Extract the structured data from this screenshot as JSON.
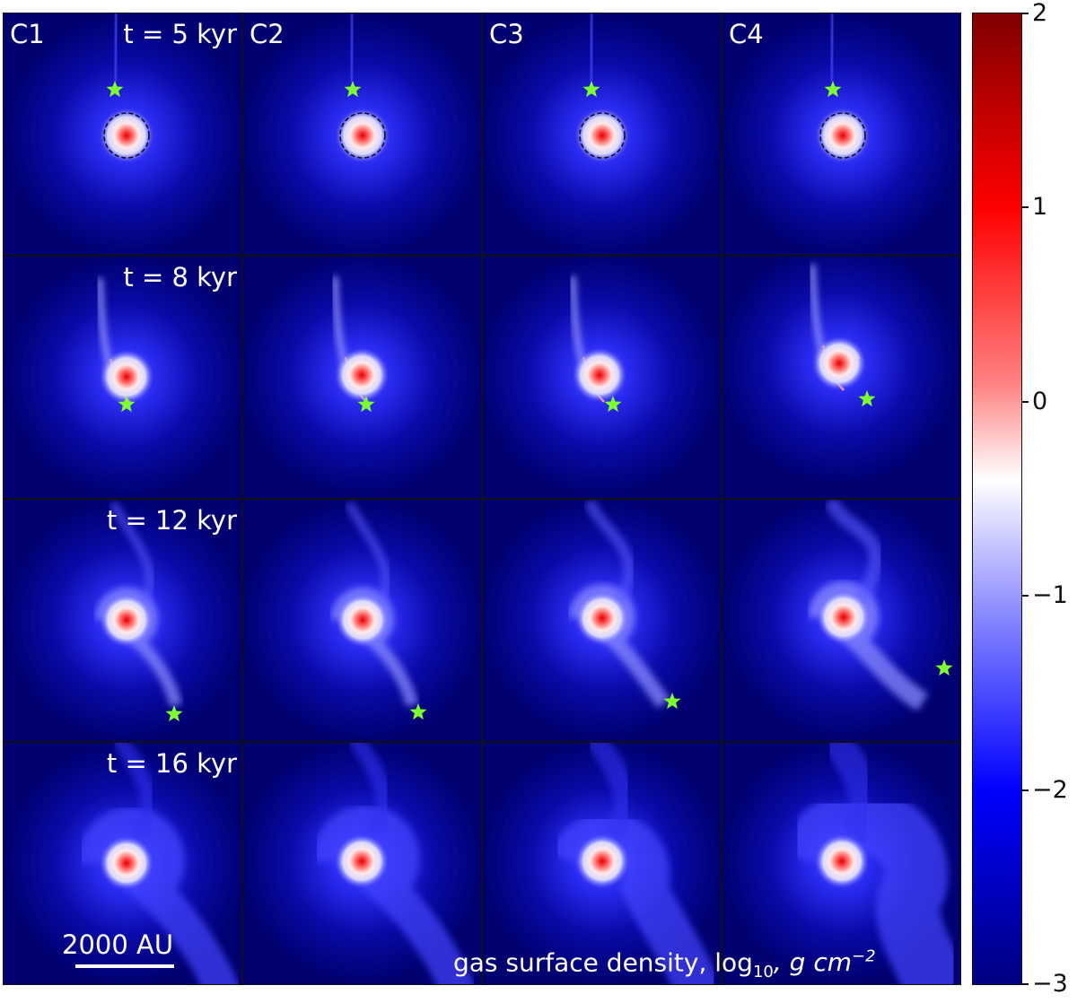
{
  "panels": {
    "columns": [
      "C1",
      "C2",
      "C3",
      "C4"
    ],
    "row_times": [
      "t = 5 kyr",
      "t = 8 kyr",
      "t = 12 kyr",
      "t = 16 kyr"
    ]
  },
  "scalebar": {
    "label": "2000 AU"
  },
  "density_label": {
    "prefix": "gas surface density, log",
    "sub": "10",
    "unit": ",  g cm",
    "sup": "−2"
  },
  "colorbar": {
    "ticks": [
      "2",
      "1",
      "0",
      "−1",
      "−2",
      "−3"
    ],
    "range": [
      -3,
      2
    ],
    "colors": [
      "#000080",
      "#0000ff",
      "#ffffff",
      "#ff0000",
      "#800000"
    ]
  },
  "colors": {
    "background": "#000070",
    "star": "#7cff2a"
  },
  "icons": {
    "star": "star-icon",
    "circle": "dashed-circle"
  }
}
